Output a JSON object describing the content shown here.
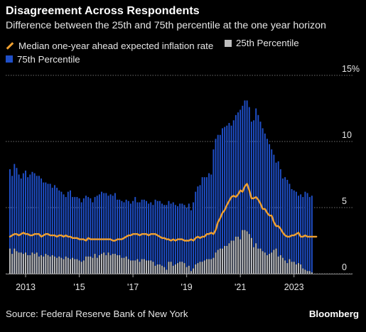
{
  "title": "Disagreement Across Respondents",
  "subtitle": "Difference between the 25th and 75th percentile at the one year horizon",
  "source": "Source: Federal Reserve Bank of New York",
  "brand": "Bloomberg",
  "colors": {
    "p75": "#1f4fc8",
    "p25": "#bdbdbd",
    "median": "#f0a030",
    "grid": "#6e6e6e",
    "text": "#e6e6e6"
  },
  "chart_data": {
    "type": "bar",
    "legend_placement": "top-left",
    "y_axis_side": "right",
    "ylim": [
      0,
      15
    ],
    "yticks": [
      {
        "value": 0,
        "label": "0"
      },
      {
        "value": 5,
        "label": "5"
      },
      {
        "value": 10,
        "label": "10"
      },
      {
        "value": 15,
        "label": "15%"
      }
    ],
    "xticks": [
      {
        "x": 2013,
        "label": "2013"
      },
      {
        "x": 2015,
        "label": "'15"
      },
      {
        "x": 2017,
        "label": "'17"
      },
      {
        "x": 2019,
        "label": "'19"
      },
      {
        "x": 2021,
        "label": "'21"
      },
      {
        "x": 2023,
        "label": "2023"
      }
    ],
    "xlim": [
      2012.47,
      2024.12
    ],
    "start": "2012-06",
    "series": [
      {
        "name": "75th Percentile",
        "values": [
          7.9,
          7.4,
          8.3,
          8.0,
          7.5,
          7.2,
          7.6,
          7.8,
          7.3,
          7.5,
          7.7,
          7.6,
          7.4,
          7.4,
          7.2,
          6.9,
          6.9,
          6.8,
          6.8,
          6.5,
          6.7,
          6.5,
          6.3,
          6.2,
          6.0,
          5.8,
          6.2,
          6.3,
          5.8,
          5.8,
          5.8,
          5.7,
          5.4,
          5.7,
          5.9,
          5.8,
          5.7,
          5.4,
          5.8,
          5.9,
          6.0,
          6.2,
          6.1,
          6.1,
          5.9,
          6.0,
          5.9,
          6.1,
          5.6,
          5.6,
          5.5,
          5.4,
          5.6,
          5.5,
          5.3,
          5.5,
          5.8,
          5.4,
          5.4,
          5.6,
          5.6,
          5.5,
          5.3,
          5.4,
          5.2,
          5.6,
          5.5,
          5.5,
          5.3,
          5.2,
          5.2,
          5.5,
          5.3,
          5.4,
          5.2,
          5.1,
          5.3,
          5.3,
          5.2,
          5.0,
          5.3,
          4.8,
          5.4,
          6.2,
          6.6,
          6.7,
          7.3,
          7.3,
          7.3,
          7.6,
          7.5,
          9.4,
          10.2,
          10.5,
          10.5,
          11.0,
          11.1,
          11.2,
          11.4,
          11.2,
          11.6,
          12.0,
          12.2,
          12.4,
          12.7,
          13.1,
          13.1,
          12.6,
          11.5,
          11.6,
          12.5,
          12.0,
          11.5,
          11.0,
          10.6,
          10.2,
          9.8,
          9.4,
          9.0,
          8.4,
          8.5,
          7.9,
          7.2,
          7.3,
          7.1,
          6.8,
          6.4,
          6.3,
          6.2,
          5.9,
          6.0,
          5.8,
          6.2,
          6.1,
          5.8,
          5.9
        ],
        "color": "#1f4fc8"
      },
      {
        "name": "25th Percentile",
        "values": [
          1.9,
          1.5,
          1.9,
          1.7,
          1.6,
          1.6,
          1.5,
          1.6,
          1.4,
          1.4,
          1.6,
          1.5,
          1.6,
          1.3,
          1.4,
          1.3,
          1.5,
          1.4,
          1.3,
          1.4,
          1.3,
          1.2,
          1.3,
          1.2,
          1.1,
          1.3,
          1.2,
          1.1,
          1.2,
          1.1,
          1.1,
          1.0,
          0.9,
          1.0,
          1.3,
          1.3,
          1.3,
          1.2,
          1.5,
          1.2,
          1.4,
          1.5,
          1.6,
          1.4,
          1.6,
          1.4,
          1.5,
          1.5,
          1.4,
          1.4,
          1.2,
          1.2,
          1.3,
          1.1,
          1.0,
          1.0,
          1.0,
          1.1,
          0.9,
          1.1,
          1.1,
          1.0,
          1.0,
          1.0,
          0.9,
          0.6,
          0.7,
          0.7,
          0.6,
          0.5,
          0.3,
          0.9,
          0.9,
          0.6,
          0.7,
          0.8,
          0.9,
          0.9,
          0.8,
          0.5,
          0.6,
          0.2,
          0.4,
          0.7,
          0.8,
          0.9,
          0.9,
          1.0,
          1.1,
          1.1,
          1.1,
          1.2,
          1.6,
          1.8,
          1.9,
          1.9,
          2.1,
          2.1,
          2.3,
          2.5,
          2.5,
          2.8,
          2.8,
          2.6,
          3.3,
          3.3,
          3.2,
          3.0,
          2.7,
          2.0,
          2.3,
          1.9,
          1.9,
          1.7,
          1.6,
          1.4,
          1.5,
          1.6,
          1.8,
          1.9,
          1.3,
          1.4,
          1.2,
          1.0,
          0.8,
          1.1,
          0.9,
          0.9,
          0.7,
          0.8,
          0.7,
          0.4,
          0.3,
          0.2,
          0.2,
          0.1
        ],
        "color": "#bdbdbd"
      },
      {
        "name": "Median one-year ahead expected inflation rate",
        "values": [
          2.8,
          2.9,
          3.0,
          3.0,
          2.9,
          3.0,
          3.1,
          3.0,
          3.0,
          2.9,
          2.9,
          3.0,
          3.0,
          3.0,
          2.8,
          2.9,
          3.0,
          3.0,
          2.9,
          2.9,
          2.9,
          2.8,
          2.9,
          2.9,
          2.8,
          2.9,
          2.8,
          2.8,
          2.7,
          2.7,
          2.7,
          2.6,
          2.6,
          2.6,
          2.5,
          2.7,
          2.6,
          2.6,
          2.6,
          2.6,
          2.6,
          2.6,
          2.6,
          2.6,
          2.6,
          2.6,
          2.5,
          2.5,
          2.6,
          2.6,
          2.6,
          2.7,
          2.8,
          2.9,
          2.9,
          3.0,
          3.0,
          3.0,
          2.9,
          3.0,
          3.0,
          3.0,
          2.9,
          3.0,
          3.0,
          3.0,
          2.9,
          2.8,
          2.7,
          2.7,
          2.6,
          2.6,
          2.5,
          2.6,
          2.5,
          2.6,
          2.6,
          2.6,
          2.5,
          2.5,
          2.5,
          2.6,
          2.5,
          2.7,
          2.8,
          2.7,
          2.8,
          2.8,
          3.0,
          3.0,
          3.1,
          3.0,
          3.3,
          3.9,
          4.2,
          4.6,
          4.8,
          5.2,
          5.5,
          5.8,
          5.9,
          5.8,
          6.0,
          6.3,
          6.2,
          6.6,
          6.8,
          6.3,
          5.7,
          5.7,
          5.8,
          5.6,
          5.3,
          4.9,
          4.9,
          4.6,
          4.4,
          4.4,
          3.9,
          3.6,
          3.6,
          3.4,
          3.1,
          2.9,
          2.8,
          2.8,
          2.9,
          2.9,
          3.0,
          3.1,
          2.8,
          2.8,
          2.9,
          2.8,
          2.8,
          2.8,
          2.8,
          2.8
        ],
        "color": "#f0a030"
      }
    ]
  }
}
